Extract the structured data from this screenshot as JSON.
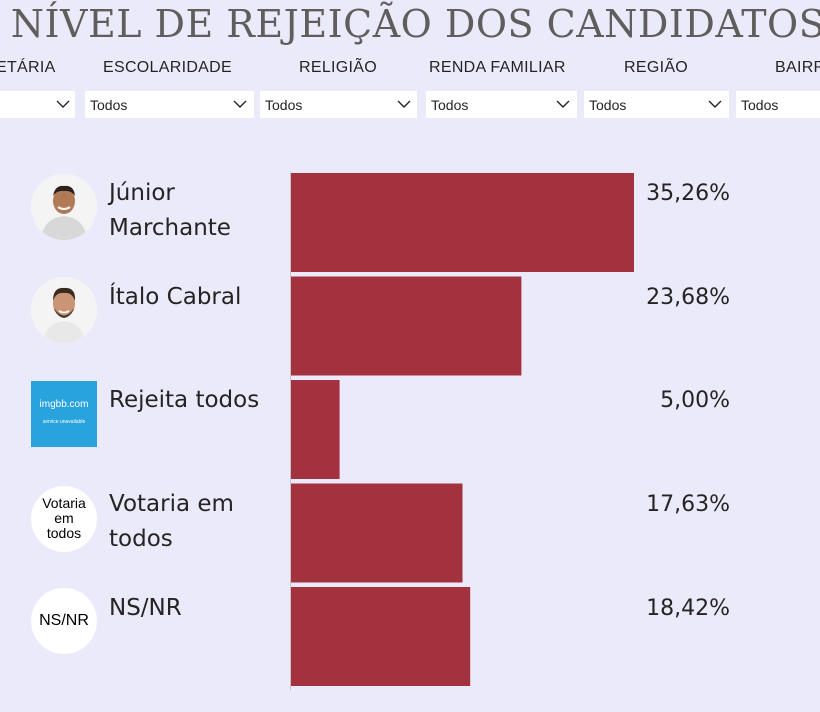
{
  "title": "NÍVEL DE REJEIÇÃO DOS CANDIDATOS",
  "filters": [
    {
      "label": "ETÁRIA",
      "value": ""
    },
    {
      "label": "ESCOLARIDADE",
      "value": "Todos"
    },
    {
      "label": "RELIGIÃO",
      "value": "Todos"
    },
    {
      "label": "RENDA FAMILIAR",
      "value": "Todos"
    },
    {
      "label": "REGIÃO",
      "value": "Todos"
    },
    {
      "label": "BAIRR",
      "value": "Todos"
    }
  ],
  "avatars": {
    "imgbb_main": "imgbb.com",
    "imgbb_sub": "service unavailable",
    "votaria": [
      "Votaria",
      "em",
      "todos"
    ],
    "nsnr": "NS/NR"
  },
  "chart_data": {
    "type": "bar",
    "orientation": "horizontal",
    "title": "NÍVEL DE REJEIÇÃO DOS CANDIDATOS",
    "categories": [
      "Júnior Marchante",
      "Ítalo Cabral",
      "Rejeita todos",
      "Votaria em todos",
      "NS/NR"
    ],
    "values": [
      35.26,
      23.68,
      5.0,
      17.63,
      18.42
    ],
    "value_labels": [
      "35,26%",
      "23,68%",
      "5,00%",
      "17,63%",
      "18,42%"
    ],
    "xlim": [
      0,
      35.26
    ],
    "grid": false,
    "bar_color": "#a4323e"
  }
}
